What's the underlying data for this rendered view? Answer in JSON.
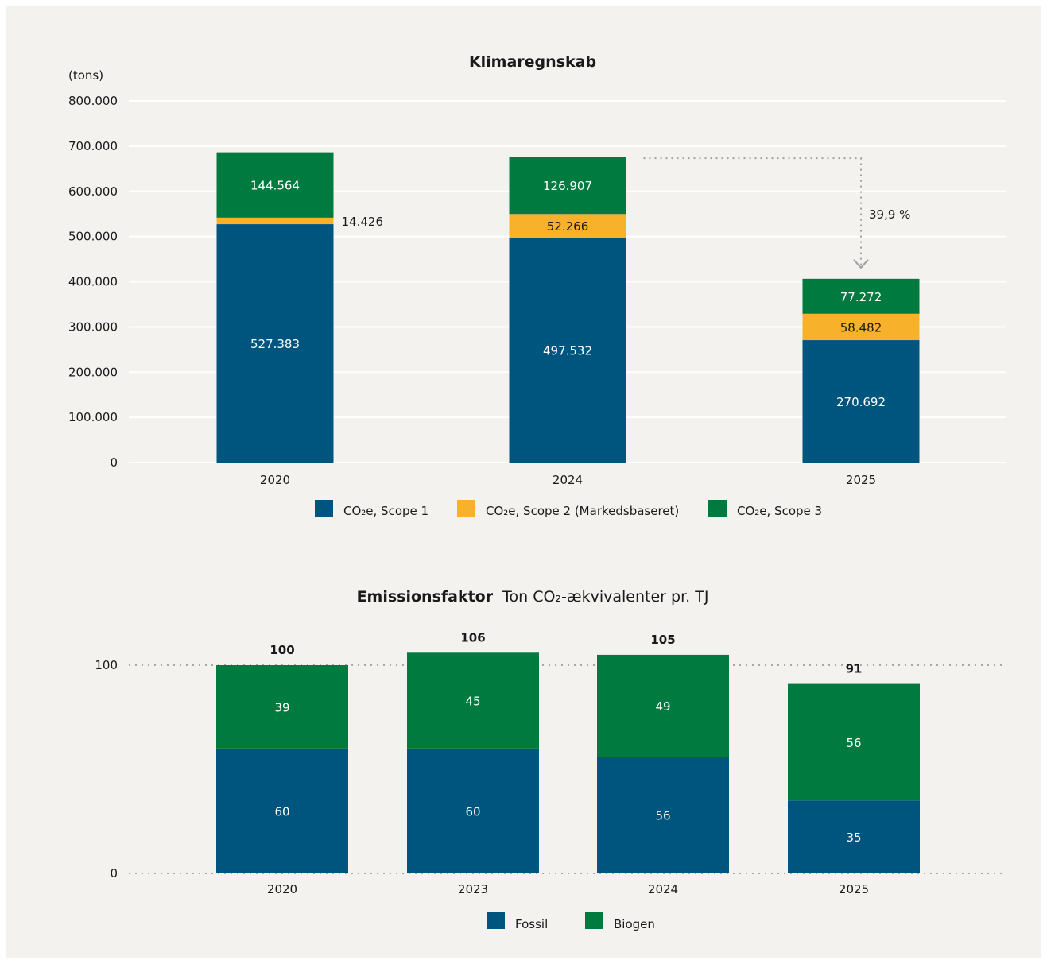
{
  "colors": {
    "background": "#f4f2ef",
    "scope1": "#00557f",
    "scope2": "#f7b12a",
    "scope3": "#007a3e",
    "fossil": "#00557f",
    "biogen": "#007a3e",
    "annotation": "#a0a0a0"
  },
  "chart_data": [
    {
      "type": "bar",
      "stacked": true,
      "title": "Klimaregnskab",
      "ylabel": "(tons)",
      "ylim": [
        0,
        800000
      ],
      "yticks": [
        "0",
        "100.000",
        "200.000",
        "300.000",
        "400.000",
        "500.000",
        "600.000",
        "700.000",
        "800.000"
      ],
      "grid": true,
      "categories": [
        "2020",
        "2024",
        "2025"
      ],
      "series": [
        {
          "name": "CO₂e, Scope 1",
          "values": [
            527383,
            497532,
            270692
          ],
          "labels": [
            "527.383",
            "497.532",
            "270.692"
          ]
        },
        {
          "name": "CO₂e, Scope 2 (Markedsbaseret)",
          "values": [
            14426,
            52266,
            58482
          ],
          "labels": [
            "14.426",
            "52.266",
            "58.482"
          ]
        },
        {
          "name": "CO₂e, Scope 3",
          "values": [
            144564,
            126907,
            77272
          ],
          "labels": [
            "144.564",
            "126.907",
            "77.272"
          ]
        }
      ],
      "annotation": {
        "text": "39,9 %",
        "from": "2024",
        "to": "2025"
      },
      "legend_position": "bottom"
    },
    {
      "type": "bar",
      "stacked": true,
      "title": "Emissionsfaktor",
      "subtitle": "Ton CO₂-ækvivalenter pr. TJ",
      "ylim": [
        0,
        100
      ],
      "yticks": [
        "0",
        "100"
      ],
      "categories": [
        "2020",
        "2023",
        "2024",
        "2025"
      ],
      "totals": [
        100,
        106,
        105,
        91
      ],
      "series": [
        {
          "name": "Fossil",
          "values": [
            60,
            60,
            56,
            35
          ]
        },
        {
          "name": "Biogen",
          "values": [
            39,
            45,
            49,
            56
          ]
        }
      ],
      "legend_position": "bottom"
    }
  ]
}
